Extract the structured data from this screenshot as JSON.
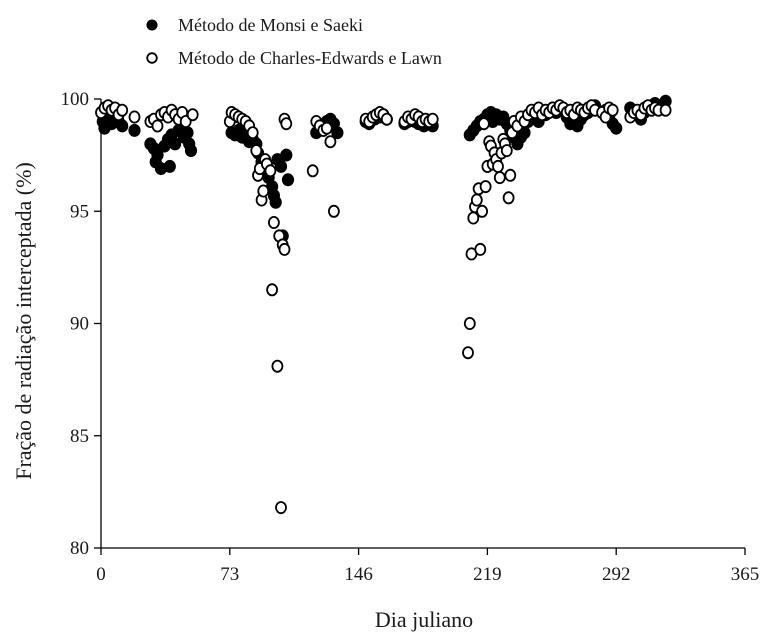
{
  "chart_data": {
    "type": "scatter",
    "xlabel": "Dia juliano",
    "ylabel": "Fração de radiação interceptada (%)",
    "xlim": [
      0,
      365
    ],
    "ylim": [
      80,
      100
    ],
    "xticks": [
      0,
      73,
      146,
      219,
      292,
      365
    ],
    "yticks": [
      80,
      85,
      90,
      95,
      100
    ],
    "grid": false,
    "legend_position": "top-left",
    "series": [
      {
        "name": "Método de Monsi e Saeki",
        "marker": "filled-circle",
        "color": "#000000",
        "points": [
          [
            1,
            99.0
          ],
          [
            2,
            98.7
          ],
          [
            4,
            99.2
          ],
          [
            6,
            98.9
          ],
          [
            8,
            99.3
          ],
          [
            10,
            99.0
          ],
          [
            12,
            98.8
          ],
          [
            19,
            98.6
          ],
          [
            28,
            98.0
          ],
          [
            30,
            97.8
          ],
          [
            31,
            97.2
          ],
          [
            32,
            97.5
          ],
          [
            34,
            96.9
          ],
          [
            36,
            97.9
          ],
          [
            38,
            98.2
          ],
          [
            39,
            97.0
          ],
          [
            40,
            98.4
          ],
          [
            42,
            98.0
          ],
          [
            44,
            98.6
          ],
          [
            46,
            98.9
          ],
          [
            47,
            98.3
          ],
          [
            49,
            98.5
          ],
          [
            50,
            98.0
          ],
          [
            51,
            97.7
          ],
          [
            74,
            98.5
          ],
          [
            76,
            98.4
          ],
          [
            78,
            98.6
          ],
          [
            80,
            98.3
          ],
          [
            82,
            98.5
          ],
          [
            84,
            98.1
          ],
          [
            86,
            98.2
          ],
          [
            88,
            98.0
          ],
          [
            89,
            97.6
          ],
          [
            91,
            97.2
          ],
          [
            92,
            96.9
          ],
          [
            94,
            97.0
          ],
          [
            95,
            96.5
          ],
          [
            97,
            96.1
          ],
          [
            98,
            95.7
          ],
          [
            99,
            95.4
          ],
          [
            100,
            97.3
          ],
          [
            102,
            97.0
          ],
          [
            103,
            93.9
          ],
          [
            105,
            97.5
          ],
          [
            106,
            96.4
          ],
          [
            122,
            98.5
          ],
          [
            124,
            98.7
          ],
          [
            126,
            98.8
          ],
          [
            128,
            99.0
          ],
          [
            130,
            99.1
          ],
          [
            132,
            98.9
          ],
          [
            134,
            98.5
          ],
          [
            150,
            99.0
          ],
          [
            152,
            98.9
          ],
          [
            155,
            99.1
          ],
          [
            158,
            99.2
          ],
          [
            160,
            99.3
          ],
          [
            162,
            99.1
          ],
          [
            172,
            98.9
          ],
          [
            174,
            99.0
          ],
          [
            176,
            99.1
          ],
          [
            178,
            99.0
          ],
          [
            180,
            98.9
          ],
          [
            183,
            98.8
          ],
          [
            186,
            98.9
          ],
          [
            188,
            98.8
          ],
          [
            209,
            98.4
          ],
          [
            211,
            98.6
          ],
          [
            213,
            98.8
          ],
          [
            215,
            99.0
          ],
          [
            217,
            99.1
          ],
          [
            219,
            99.3
          ],
          [
            220,
            99.2
          ],
          [
            221,
            99.4
          ],
          [
            222,
            99.0
          ],
          [
            224,
            99.3
          ],
          [
            226,
            99.1
          ],
          [
            228,
            99.2
          ],
          [
            230,
            98.9
          ],
          [
            232,
            98.6
          ],
          [
            234,
            98.3
          ],
          [
            236,
            98.0
          ],
          [
            238,
            98.3
          ],
          [
            240,
            98.5
          ],
          [
            242,
            99.0
          ],
          [
            244,
            99.1
          ],
          [
            246,
            99.3
          ],
          [
            248,
            99.0
          ],
          [
            250,
            99.4
          ],
          [
            252,
            99.3
          ],
          [
            254,
            99.5
          ],
          [
            256,
            99.6
          ],
          [
            258,
            99.4
          ],
          [
            260,
            99.6
          ],
          [
            262,
            99.5
          ],
          [
            264,
            99.2
          ],
          [
            266,
            98.9
          ],
          [
            268,
            99.0
          ],
          [
            270,
            98.8
          ],
          [
            272,
            99.1
          ],
          [
            274,
            99.3
          ],
          [
            276,
            99.4
          ],
          [
            278,
            99.6
          ],
          [
            280,
            99.7
          ],
          [
            284,
            99.4
          ],
          [
            286,
            99.5
          ],
          [
            288,
            99.2
          ],
          [
            290,
            98.9
          ],
          [
            292,
            98.7
          ],
          [
            300,
            99.6
          ],
          [
            302,
            99.4
          ],
          [
            304,
            99.3
          ],
          [
            306,
            99.1
          ],
          [
            308,
            99.4
          ],
          [
            310,
            99.6
          ],
          [
            312,
            99.7
          ],
          [
            314,
            99.8
          ],
          [
            316,
            99.6
          ],
          [
            320,
            99.9
          ]
        ]
      },
      {
        "name": "Método de Charles-Edwards e Lawn",
        "marker": "open-circle",
        "color": "#000000",
        "points": [
          [
            0,
            99.4
          ],
          [
            2,
            99.6
          ],
          [
            4,
            99.7
          ],
          [
            6,
            99.5
          ],
          [
            8,
            99.6
          ],
          [
            10,
            99.3
          ],
          [
            12,
            99.5
          ],
          [
            19,
            99.2
          ],
          [
            28,
            99.0
          ],
          [
            30,
            99.1
          ],
          [
            32,
            98.8
          ],
          [
            34,
            99.3
          ],
          [
            36,
            99.4
          ],
          [
            38,
            99.2
          ],
          [
            40,
            99.5
          ],
          [
            42,
            99.3
          ],
          [
            44,
            99.1
          ],
          [
            46,
            99.4
          ],
          [
            48,
            99.0
          ],
          [
            52,
            99.3
          ],
          [
            73,
            99.0
          ],
          [
            74,
            99.4
          ],
          [
            76,
            99.3
          ],
          [
            78,
            99.2
          ],
          [
            80,
            99.1
          ],
          [
            82,
            99.0
          ],
          [
            84,
            98.8
          ],
          [
            86,
            98.5
          ],
          [
            88,
            97.7
          ],
          [
            89,
            96.6
          ],
          [
            90,
            96.9
          ],
          [
            91,
            95.5
          ],
          [
            92,
            95.9
          ],
          [
            93,
            97.3
          ],
          [
            94,
            97.1
          ],
          [
            96,
            96.8
          ],
          [
            97,
            91.5
          ],
          [
            98,
            94.5
          ],
          [
            100,
            88.1
          ],
          [
            101,
            93.9
          ],
          [
            102,
            81.8
          ],
          [
            103,
            93.5
          ],
          [
            104,
            93.3
          ],
          [
            104,
            99.1
          ],
          [
            105,
            98.9
          ],
          [
            120,
            96.8
          ],
          [
            122,
            99.0
          ],
          [
            124,
            98.8
          ],
          [
            126,
            98.6
          ],
          [
            128,
            98.7
          ],
          [
            130,
            98.1
          ],
          [
            132,
            95.0
          ],
          [
            150,
            99.1
          ],
          [
            152,
            99.0
          ],
          [
            154,
            99.2
          ],
          [
            156,
            99.3
          ],
          [
            158,
            99.4
          ],
          [
            160,
            99.3
          ],
          [
            162,
            99.1
          ],
          [
            172,
            99.0
          ],
          [
            174,
            99.2
          ],
          [
            176,
            99.1
          ],
          [
            178,
            99.3
          ],
          [
            180,
            99.2
          ],
          [
            182,
            99.0
          ],
          [
            184,
            99.1
          ],
          [
            186,
            99.0
          ],
          [
            188,
            99.1
          ],
          [
            208,
            88.7
          ],
          [
            209,
            90.0
          ],
          [
            210,
            93.1
          ],
          [
            211,
            94.7
          ],
          [
            212,
            95.2
          ],
          [
            213,
            95.5
          ],
          [
            214,
            96.0
          ],
          [
            215,
            93.3
          ],
          [
            216,
            95.0
          ],
          [
            217,
            98.9
          ],
          [
            218,
            96.1
          ],
          [
            219,
            97.0
          ],
          [
            220,
            98.1
          ],
          [
            221,
            97.9
          ],
          [
            222,
            97.1
          ],
          [
            223,
            97.6
          ],
          [
            224,
            97.3
          ],
          [
            225,
            97.0
          ],
          [
            226,
            96.5
          ],
          [
            227,
            97.6
          ],
          [
            228,
            98.2
          ],
          [
            229,
            98.0
          ],
          [
            230,
            97.7
          ],
          [
            231,
            95.6
          ],
          [
            232,
            96.6
          ],
          [
            233,
            98.5
          ],
          [
            234,
            99.0
          ],
          [
            236,
            98.8
          ],
          [
            238,
            99.2
          ],
          [
            240,
            99.0
          ],
          [
            242,
            99.3
          ],
          [
            244,
            99.5
          ],
          [
            246,
            99.4
          ],
          [
            248,
            99.6
          ],
          [
            250,
            99.3
          ],
          [
            252,
            99.5
          ],
          [
            254,
            99.4
          ],
          [
            256,
            99.6
          ],
          [
            258,
            99.5
          ],
          [
            260,
            99.7
          ],
          [
            262,
            99.6
          ],
          [
            264,
            99.4
          ],
          [
            266,
            99.5
          ],
          [
            268,
            99.3
          ],
          [
            270,
            99.6
          ],
          [
            272,
            99.5
          ],
          [
            274,
            99.4
          ],
          [
            276,
            99.6
          ],
          [
            278,
            99.7
          ],
          [
            280,
            99.5
          ],
          [
            284,
            99.4
          ],
          [
            286,
            99.2
          ],
          [
            288,
            99.6
          ],
          [
            290,
            99.5
          ],
          [
            300,
            99.2
          ],
          [
            302,
            99.4
          ],
          [
            304,
            99.5
          ],
          [
            306,
            99.3
          ],
          [
            308,
            99.6
          ],
          [
            310,
            99.7
          ],
          [
            312,
            99.5
          ],
          [
            314,
            99.6
          ],
          [
            316,
            99.5
          ],
          [
            320,
            99.5
          ]
        ]
      }
    ]
  }
}
